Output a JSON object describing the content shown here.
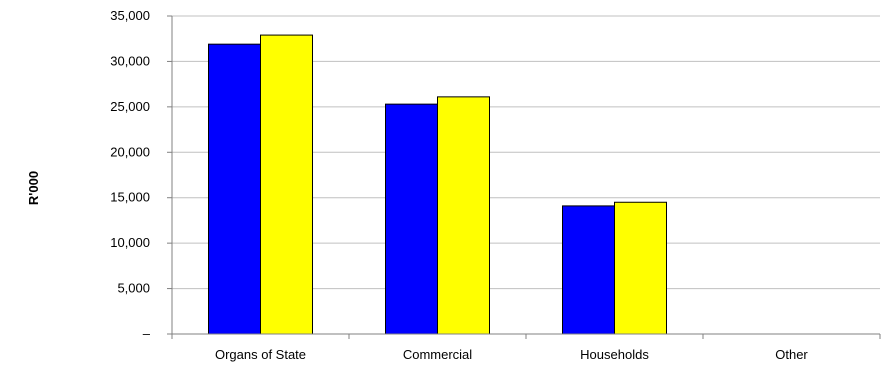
{
  "chart_data": {
    "type": "bar",
    "title": "",
    "xlabel": "",
    "ylabel": "R'000",
    "categories": [
      "Organs of State",
      "Commercial",
      "Households",
      "Other"
    ],
    "series": [
      {
        "values": [
          31900,
          25300,
          14100,
          0
        ],
        "color": "#0000FF"
      },
      {
        "values": [
          32900,
          26100,
          14500,
          0
        ],
        "color": "#FFFF00"
      }
    ],
    "ylim": [
      0,
      35000
    ],
    "yticks": [
      0,
      5000,
      10000,
      15000,
      20000,
      25000,
      30000,
      35000
    ],
    "ytick_labels": [
      "–",
      "5,000",
      "10,000",
      "15,000",
      "20,000",
      "25,000",
      "30,000",
      "35,000"
    ],
    "grid": true,
    "legend": "none",
    "bar_outline_color": "#000000",
    "grid_color": "#C0C0C0"
  }
}
